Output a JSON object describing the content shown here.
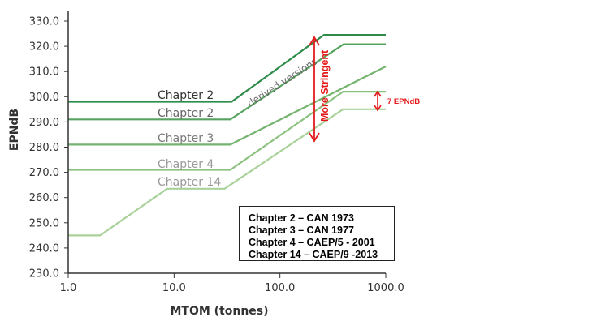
{
  "chart_data": {
    "type": "line",
    "xlabel": "MTOM (tonnes)",
    "ylabel": "EPNdB",
    "xscale": "log",
    "xlim": [
      1.0,
      1000.0
    ],
    "ylim": [
      230.0,
      330.0
    ],
    "x_ticks": [
      "1.0",
      "10.0",
      "100.0",
      "1000.0"
    ],
    "y_ticks": [
      "230.0",
      "240.0",
      "250.0",
      "260.0",
      "270.0",
      "280.0",
      "290.0",
      "300.0",
      "310.0",
      "320.0",
      "330.0"
    ],
    "grid": false,
    "series": [
      {
        "name": "Chapter 2",
        "color": "#2e8b4a",
        "label": "Chapter 2",
        "points": [
          [
            1.0,
            298.0
          ],
          [
            35.0,
            298.0
          ],
          [
            260.0,
            324.5
          ],
          [
            1000.0,
            324.5
          ]
        ]
      },
      {
        "name": "Chapter 2",
        "color": "#58a35f",
        "label": "Chapter 2",
        "points": [
          [
            1.0,
            291.0
          ],
          [
            34.0,
            291.0
          ],
          [
            400.0,
            320.8
          ],
          [
            1000.0,
            320.8
          ]
        ]
      },
      {
        "name": "Chapter 3",
        "color": "#74b46e",
        "label": "Chapter 3",
        "points": [
          [
            1.0,
            281.0
          ],
          [
            34.0,
            281.0
          ],
          [
            1000.0,
            312.0
          ]
        ]
      },
      {
        "name": "Chapter 4",
        "color": "#8cc17f",
        "label": "Chapter 4",
        "points": [
          [
            1.0,
            271.0
          ],
          [
            34.0,
            271.0
          ],
          [
            395.0,
            302.0
          ],
          [
            1000.0,
            302.0
          ]
        ]
      },
      {
        "name": "Chapter 14",
        "color": "#a9d29a",
        "label": "Chapter 14",
        "points": [
          [
            1.0,
            245.0
          ],
          [
            2.0,
            245.0
          ],
          [
            8.6,
            263.5
          ],
          [
            30.0,
            263.5
          ],
          [
            395.0,
            295.0
          ],
          [
            1000.0,
            295.0
          ]
        ]
      }
    ],
    "annotations": {
      "derived": "derived versions",
      "stringent": "More Stringent",
      "epndb": "7 EPNdB"
    },
    "legend_lines": [
      "Chapter 2 – CAN 1973",
      "Chapter 3 – CAN 1977",
      "Chapter 4 – CAEP/5 - 2001",
      "Chapter 14 – CAEP/9 -2013"
    ],
    "annotation_color": "#e31b1b"
  }
}
